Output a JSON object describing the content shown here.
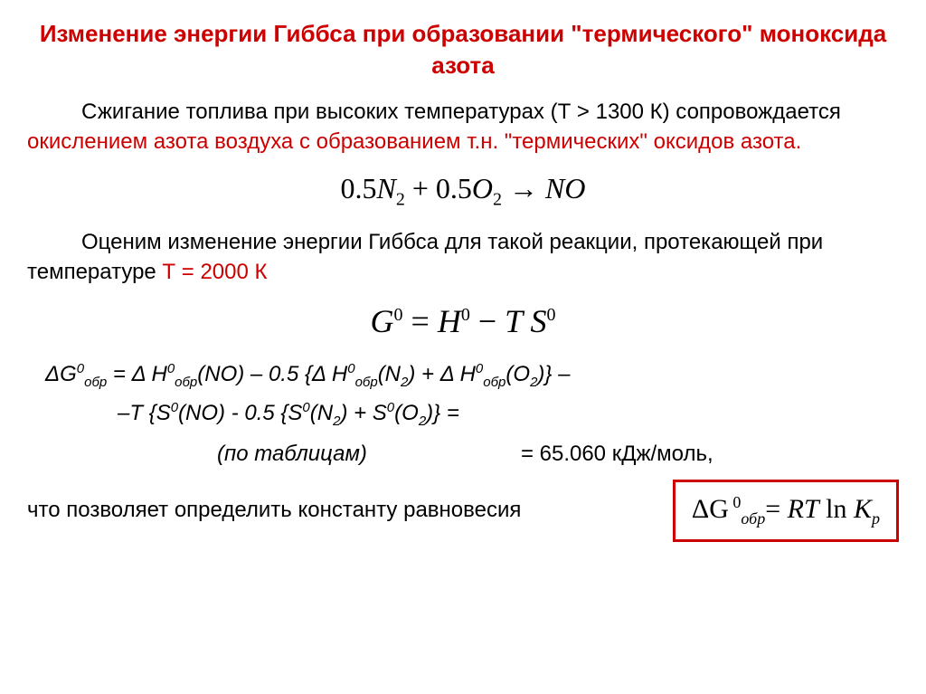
{
  "title": "Изменение энергии Гиббса при образовании \"термического\" моноксида азота",
  "p1_a": "Сжигание топлива при высоких температурах (Т > 1300 К) сопровождается ",
  "p1_red": "окислением азота воздуха с образованием т.н. \"термических\" оксидов азота.",
  "eq1": {
    "c1": "0.5",
    "s1": "N",
    "sub1": "2",
    "plus": " + ",
    "c2": "0.5",
    "s2": "O",
    "sub2": "2",
    "arrow": " → ",
    "prod": "NO"
  },
  "p2_a": "Оценим изменение энергии Гиббса для такой реакции, протекающей при температуре ",
  "p2_red": "Т = 2000 К",
  "eq2": {
    "G": "G",
    "sup0a": "0",
    "eq": " = ",
    "H": "H",
    "sup0b": "0",
    "minus": " − ",
    "T": "T ",
    "S": "S",
    "sup0c": "0"
  },
  "f_line1": {
    "t1": "ΔG",
    "s1_sup": "0",
    "s1_sub": "обр",
    "t2": " = Δ H",
    "s2_sup": "0",
    "s2_sub": "обр",
    "t3": "(NO) – 0.5 {Δ H",
    "s3_sup": "0",
    "s3_sub": "обр",
    "t4": "(N",
    "s4_sub": "2",
    "t5": ") + Δ H",
    "s5_sup": "0",
    "s5_sub": "обр",
    "t6": "(O",
    "s6_sub": "2",
    "t7": ")} –"
  },
  "f_line2": {
    "t1": "–T {S",
    "s1_sup": "0",
    "t2": "(NO) - 0.5 {S",
    "s2_sup": "0",
    "t3": "(N",
    "s3_sub": "2",
    "t4": ") + S",
    "s4_sup": "0",
    "t5": "(O",
    "s5_sub": "2",
    "t6": ")} ="
  },
  "tab_label": "(по таблицам)",
  "tab_val": "= 65.060 кДж/моль,",
  "bottom_text": "что позволяет определить константу равновесия",
  "boxed": {
    "t1": "ΔG",
    "sup": " 0",
    "sub": "обр",
    "t2": "= ",
    "rt": "RT",
    "ln": " ln ",
    "k": "K",
    "ksub": "p"
  },
  "colors": {
    "accent": "#cc0000",
    "text": "#000000",
    "bg": "#ffffff"
  }
}
